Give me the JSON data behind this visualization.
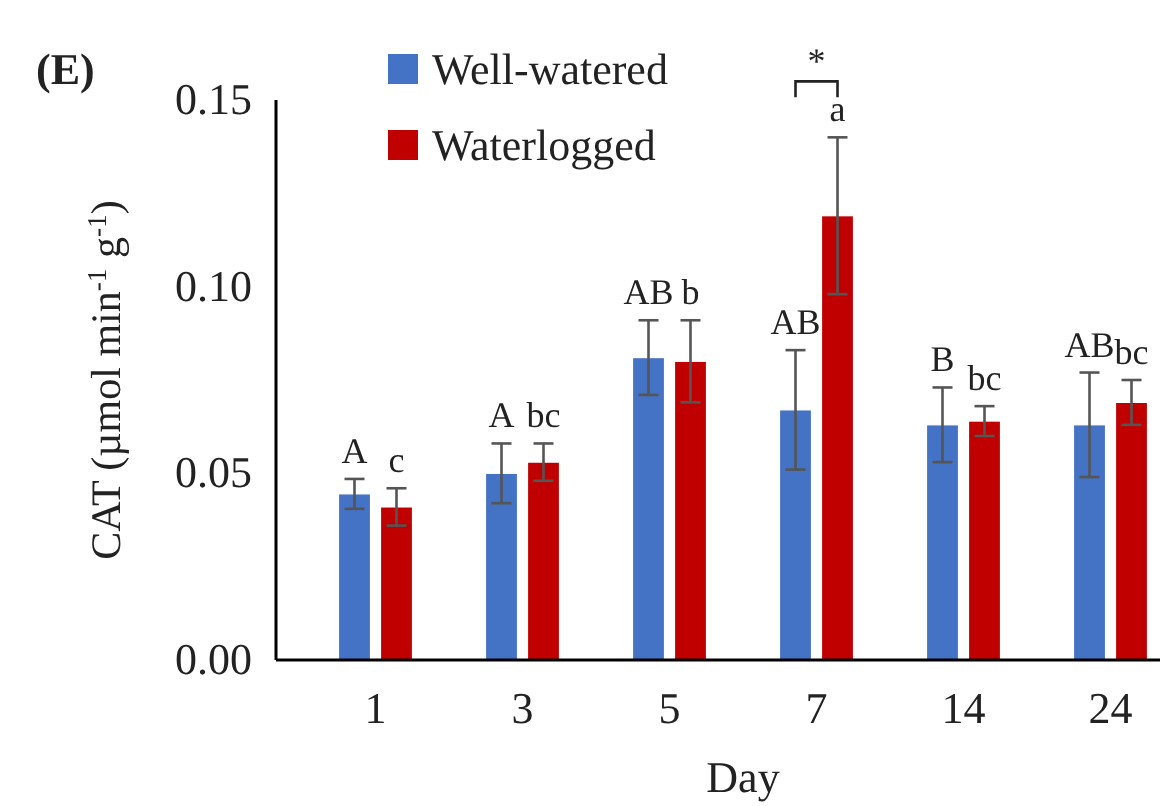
{
  "chart_data": {
    "type": "bar",
    "title": "(E)",
    "xlabel": "Day",
    "ylabel": "CAT (µmol min$^{-1}$ g$^{-1}$)",
    "categories": [
      "1",
      "3",
      "5",
      "7",
      "14",
      "24"
    ],
    "series": [
      {
        "name": "Well-watered",
        "color": "#4472c4",
        "values": [
          0.0445,
          0.05,
          0.081,
          0.067,
          0.063,
          0.063
        ],
        "errors": [
          0.004,
          0.008,
          0.01,
          0.016,
          0.01,
          0.014
        ],
        "value_labels": [
          "A",
          "A",
          "AB",
          "AB",
          "B",
          "AB"
        ]
      },
      {
        "name": "Waterlogged",
        "color": "#c00000",
        "values": [
          0.041,
          0.053,
          0.08,
          0.119,
          0.064,
          0.069
        ],
        "errors": [
          0.005,
          0.005,
          0.011,
          0.021,
          0.004,
          0.006
        ],
        "value_labels": [
          "c",
          "bc",
          "b",
          "a",
          "bc",
          "bc"
        ]
      }
    ],
    "ylim": [
      0,
      0.15
    ],
    "yticks": [
      {
        "value": 0,
        "label": "0.00"
      },
      {
        "value": 0.05,
        "label": "0.05"
      },
      {
        "value": 0.1,
        "label": "0.10"
      },
      {
        "value": 0.15,
        "label": "0.15"
      }
    ],
    "grid": false,
    "legend": "top left",
    "annotations": [
      "*"
    ]
  }
}
